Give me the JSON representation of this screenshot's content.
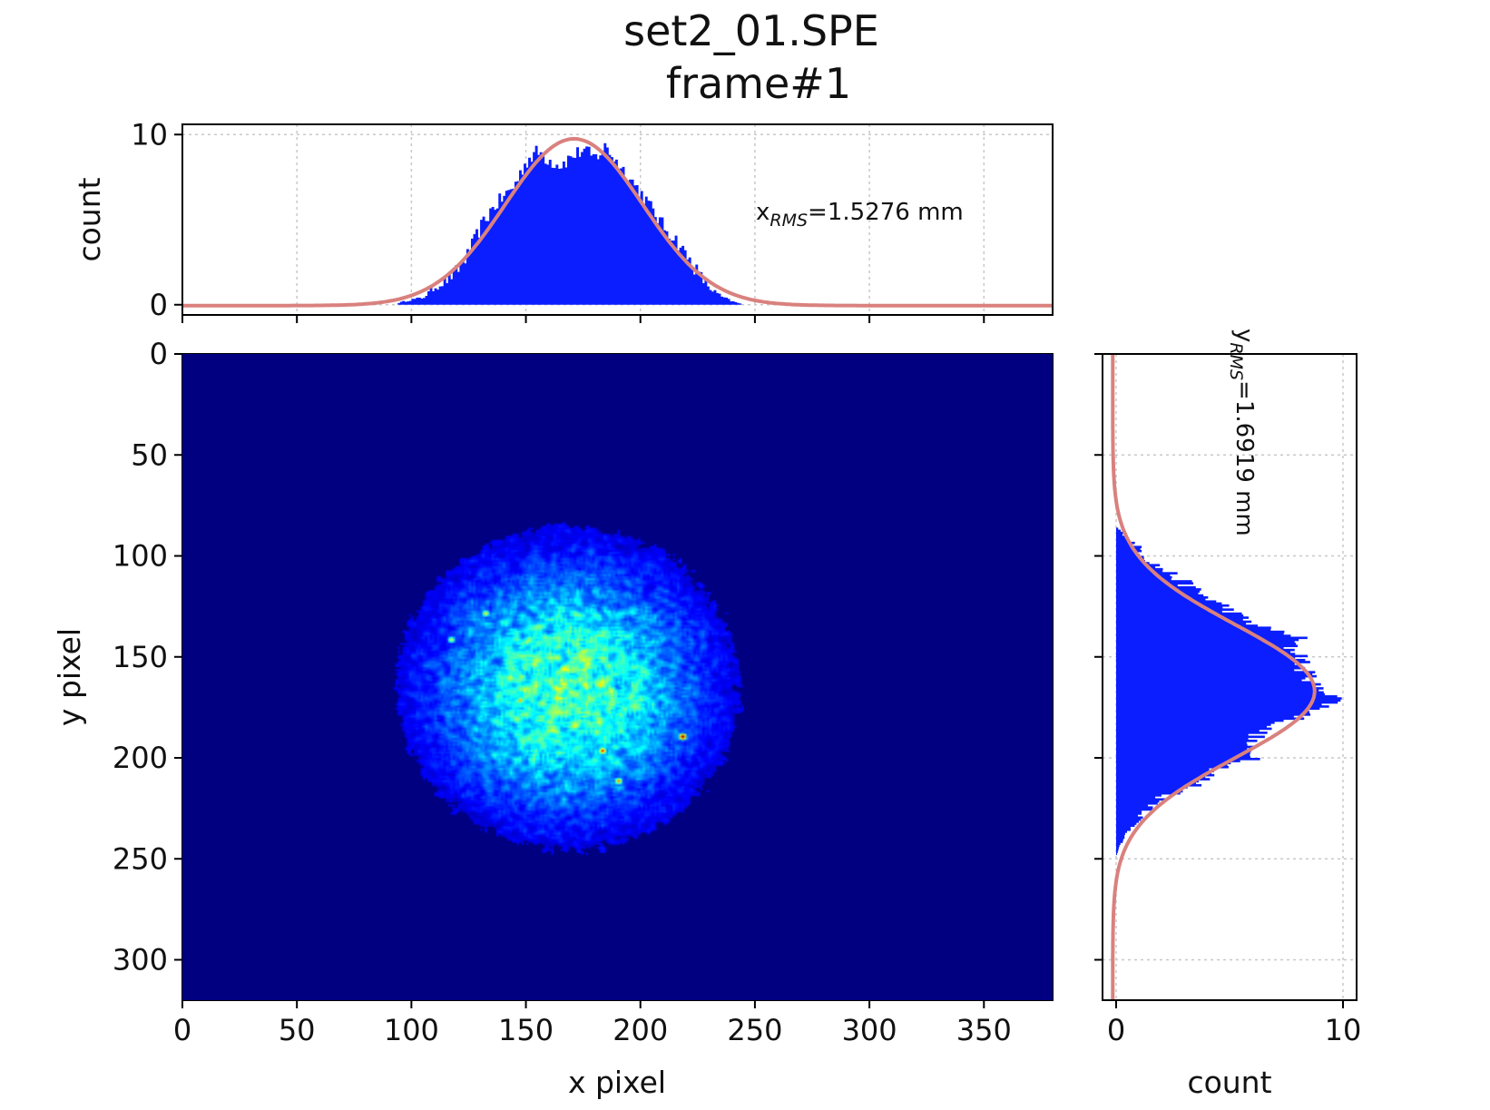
{
  "title_line1": "set2_01.SPE",
  "title_line2": "frame#1",
  "colors": {
    "histogram": "#0a1eff",
    "fit": "#d9817e",
    "heatmap_background": "#00007f",
    "grid": "#c8c8c8"
  },
  "chart_data": [
    {
      "type": "bar",
      "role": "x-projection histogram",
      "ylabel": "count",
      "xlim": [
        0,
        380
      ],
      "ylim": [
        -0.6,
        10.6
      ],
      "yticks": [
        0,
        10
      ],
      "xticks": [
        0,
        50,
        100,
        150,
        200,
        250,
        300,
        350
      ],
      "grid": true,
      "annotation": {
        "prefix": "x",
        "subscript": "RMS",
        "value": "=1.5276 mm"
      },
      "histogram_envelope": {
        "x": [
          94,
          100,
          105,
          110,
          115,
          120,
          125,
          130,
          135,
          140,
          145,
          150,
          155,
          160,
          165,
          170,
          175,
          180,
          185,
          190,
          195,
          200,
          205,
          210,
          215,
          220,
          225,
          230,
          235,
          240,
          244
        ],
        "count": [
          0.1,
          0.3,
          0.4,
          1.0,
          1.4,
          2.0,
          3.0,
          4.5,
          5.6,
          6.3,
          7.0,
          8.4,
          9.0,
          8.5,
          8.2,
          8.7,
          9.1,
          8.6,
          9.3,
          8.3,
          7.5,
          6.6,
          5.6,
          4.6,
          3.9,
          2.9,
          1.9,
          1.0,
          0.5,
          0.2,
          0.05
        ]
      },
      "gaussian_fit": {
        "amplitude": 9.8,
        "mean": 171,
        "sigma": 30,
        "offset": -0.05
      }
    },
    {
      "type": "heatmap",
      "role": "beam image",
      "xlabel": "x pixel",
      "ylabel": "y pixel",
      "xlim": [
        0,
        380
      ],
      "ylim": [
        320,
        0
      ],
      "xticks": [
        0,
        50,
        100,
        150,
        200,
        250,
        300,
        350
      ],
      "yticks": [
        0,
        50,
        100,
        150,
        200,
        250,
        300
      ],
      "colormap": "jet",
      "spot": {
        "center_x": 168,
        "center_y": 165,
        "extent_x": [
          95,
          245
        ],
        "extent_y": [
          85,
          245
        ]
      },
      "bright_pixels": [
        {
          "x": 218,
          "y": 189,
          "level": 1.0
        },
        {
          "x": 183,
          "y": 196,
          "level": 0.85
        },
        {
          "x": 190,
          "y": 211,
          "level": 0.75
        },
        {
          "x": 147,
          "y": 171,
          "level": 0.7
        },
        {
          "x": 132,
          "y": 128,
          "level": 0.65
        },
        {
          "x": 117,
          "y": 141,
          "level": 0.6
        },
        {
          "x": 176,
          "y": 165,
          "level": 0.6
        },
        {
          "x": 160,
          "y": 150,
          "level": 0.55
        }
      ]
    },
    {
      "type": "bar",
      "role": "y-projection histogram",
      "xlabel": "count",
      "xlim": [
        -0.6,
        10.6
      ],
      "ylim": [
        320,
        0
      ],
      "xticks": [
        0,
        10
      ],
      "yticks": [
        0,
        50,
        100,
        150,
        200,
        250,
        300
      ],
      "grid": true,
      "annotation": {
        "prefix": "y",
        "subscript": "RMS",
        "value": "=1.6919 mm"
      },
      "histogram_envelope": {
        "y": [
          86,
          90,
          95,
          100,
          105,
          110,
          115,
          120,
          125,
          130,
          135,
          140,
          145,
          150,
          155,
          160,
          165,
          170,
          175,
          180,
          185,
          190,
          195,
          200,
          205,
          210,
          215,
          220,
          225,
          230,
          235,
          240,
          245,
          248
        ],
        "count": [
          0.05,
          0.4,
          0.9,
          1.3,
          1.8,
          2.6,
          3.2,
          3.9,
          4.8,
          5.4,
          6.3,
          8.1,
          7.6,
          8.3,
          8.1,
          8.6,
          8.7,
          10.0,
          9.1,
          8.1,
          6.6,
          6.1,
          5.6,
          6.4,
          4.6,
          3.9,
          3.3,
          2.0,
          1.6,
          1.0,
          0.7,
          0.3,
          0.1,
          0.02
        ]
      },
      "gaussian_fit": {
        "amplitude": 8.9,
        "mean": 167,
        "sigma": 33,
        "offset": -0.15
      }
    }
  ]
}
